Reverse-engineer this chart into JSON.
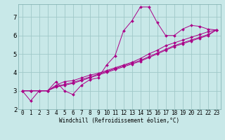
{
  "xlabel": "Windchill (Refroidissement éolien,°C)",
  "bg_color": "#c8e8e8",
  "grid_color": "#a0c8c8",
  "line_color": "#aa0088",
  "xlim": [
    -0.5,
    23.5
  ],
  "ylim": [
    2.0,
    7.7
  ],
  "xticks": [
    0,
    1,
    2,
    3,
    4,
    5,
    6,
    7,
    8,
    9,
    10,
    11,
    12,
    13,
    14,
    15,
    16,
    17,
    18,
    19,
    20,
    21,
    22,
    23
  ],
  "yticks": [
    2,
    3,
    4,
    5,
    6,
    7
  ],
  "series": [
    [
      3.0,
      2.45,
      3.0,
      3.0,
      3.5,
      3.0,
      2.8,
      3.3,
      3.6,
      3.7,
      4.4,
      4.9,
      6.25,
      6.8,
      7.55,
      7.55,
      6.7,
      6.0,
      6.0,
      6.35,
      6.55,
      6.5,
      6.35,
      6.3
    ],
    [
      3.0,
      3.0,
      3.0,
      3.0,
      3.3,
      3.5,
      3.55,
      3.7,
      3.85,
      3.95,
      4.1,
      4.25,
      4.4,
      4.55,
      4.75,
      5.0,
      5.2,
      5.45,
      5.6,
      5.75,
      5.9,
      6.05,
      6.2,
      6.3
    ],
    [
      3.0,
      3.0,
      3.0,
      3.0,
      3.25,
      3.35,
      3.45,
      3.6,
      3.75,
      3.9,
      4.05,
      4.2,
      4.35,
      4.5,
      4.65,
      4.85,
      5.05,
      5.25,
      5.45,
      5.6,
      5.75,
      5.9,
      6.05,
      6.3
    ],
    [
      3.0,
      3.0,
      3.0,
      3.0,
      3.2,
      3.3,
      3.4,
      3.55,
      3.7,
      3.85,
      4.0,
      4.15,
      4.3,
      4.45,
      4.6,
      4.8,
      5.0,
      5.2,
      5.4,
      5.55,
      5.7,
      5.85,
      6.0,
      6.3
    ]
  ],
  "xlabel_fontsize": 5.5,
  "tick_fontsize": 5.5,
  "ytick_fontsize": 6.5,
  "linewidth": 0.7,
  "markersize": 2.0
}
